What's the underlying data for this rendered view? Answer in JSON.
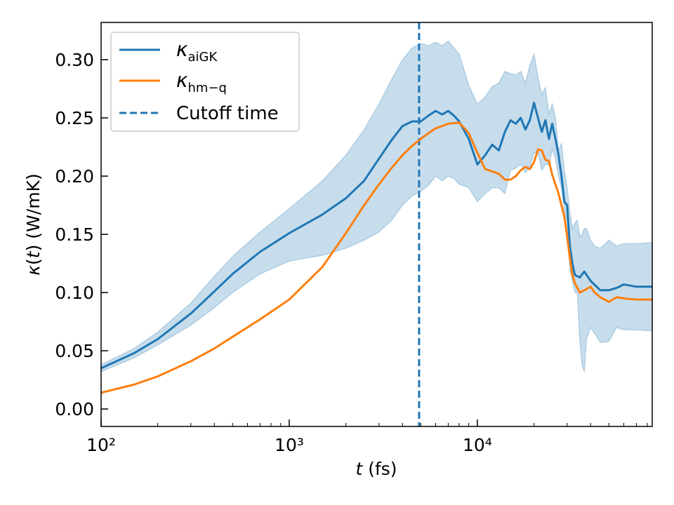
{
  "chart_data": {
    "type": "line",
    "xscale": "log",
    "xlabel": "t (fs)",
    "ylabel": "κ(t) (W/mK)",
    "xlim": [
      100,
      85000
    ],
    "ylim": [
      -0.015,
      0.332
    ],
    "x_ticks": [
      {
        "value": 100,
        "label": "10²"
      },
      {
        "value": 1000,
        "label": "10³"
      },
      {
        "value": 10000,
        "label": "10⁴"
      }
    ],
    "y_ticks": [
      {
        "value": 0.0,
        "label": "0.00"
      },
      {
        "value": 0.05,
        "label": "0.05"
      },
      {
        "value": 0.1,
        "label": "0.10"
      },
      {
        "value": 0.15,
        "label": "0.15"
      },
      {
        "value": 0.2,
        "label": "0.20"
      },
      {
        "value": 0.25,
        "label": "0.25"
      },
      {
        "value": 0.3,
        "label": "0.30"
      }
    ],
    "grid": false,
    "legend_position": "top-left",
    "colors": {
      "aigk": "#1f77b4",
      "hmq": "#ff7f0e",
      "band": "#1f77b4",
      "cutoff": "#1f77b4"
    },
    "series": [
      {
        "name": "κaiGK",
        "x": [
          100,
          150,
          200,
          300,
          400,
          500,
          700,
          1000,
          1500,
          2000,
          2500,
          3000,
          3500,
          4000,
          4500,
          5000,
          5500,
          6000,
          6500,
          7000,
          7500,
          8000,
          9000,
          10000,
          11000,
          12000,
          13000,
          14000,
          15000,
          16000,
          17000,
          18000,
          19000,
          20000,
          21000,
          22000,
          23000,
          24000,
          25000,
          26000,
          27000,
          28000,
          29000,
          30000,
          31000,
          32000,
          33000,
          35000,
          37000,
          40000,
          45000,
          50000,
          55000,
          60000,
          70000,
          85000
        ],
        "y": [
          0.035,
          0.048,
          0.06,
          0.082,
          0.101,
          0.116,
          0.135,
          0.151,
          0.167,
          0.181,
          0.196,
          0.215,
          0.231,
          0.243,
          0.247,
          0.247,
          0.252,
          0.256,
          0.253,
          0.256,
          0.252,
          0.247,
          0.232,
          0.21,
          0.218,
          0.227,
          0.222,
          0.238,
          0.248,
          0.245,
          0.25,
          0.24,
          0.248,
          0.263,
          0.25,
          0.238,
          0.248,
          0.232,
          0.245,
          0.232,
          0.218,
          0.2,
          0.178,
          0.175,
          0.14,
          0.125,
          0.115,
          0.113,
          0.118,
          0.11,
          0.102,
          0.102,
          0.104,
          0.107,
          0.105,
          0.105
        ]
      },
      {
        "name": "κhm−q",
        "x": [
          100,
          150,
          200,
          300,
          400,
          500,
          700,
          1000,
          1500,
          2000,
          2500,
          3000,
          3500,
          4000,
          4500,
          5000,
          5500,
          6000,
          7000,
          8000,
          9000,
          10000,
          11000,
          12000,
          13000,
          14000,
          15000,
          16000,
          17000,
          18000,
          19000,
          20000,
          21000,
          22000,
          23000,
          24000,
          25000,
          27000,
          29000,
          30000,
          31000,
          32000,
          33000,
          35000,
          37000,
          40000,
          42000,
          45000,
          50000,
          55000,
          60000,
          70000,
          85000
        ],
        "y": [
          0.014,
          0.021,
          0.028,
          0.041,
          0.052,
          0.062,
          0.077,
          0.094,
          0.122,
          0.151,
          0.175,
          0.193,
          0.207,
          0.218,
          0.226,
          0.232,
          0.237,
          0.241,
          0.245,
          0.246,
          0.237,
          0.22,
          0.206,
          0.204,
          0.202,
          0.197,
          0.197,
          0.2,
          0.205,
          0.208,
          0.206,
          0.212,
          0.223,
          0.222,
          0.214,
          0.213,
          0.201,
          0.185,
          0.165,
          0.148,
          0.13,
          0.115,
          0.108,
          0.1,
          0.102,
          0.105,
          0.1,
          0.096,
          0.092,
          0.096,
          0.095,
          0.094,
          0.094
        ]
      }
    ],
    "band": {
      "x": [
        100,
        150,
        200,
        300,
        400,
        500,
        700,
        1000,
        1500,
        2000,
        2500,
        3000,
        3500,
        4000,
        4500,
        5000,
        5500,
        6000,
        6500,
        7000,
        7500,
        8000,
        9000,
        10000,
        11000,
        12000,
        13000,
        14000,
        15000,
        16000,
        17000,
        18000,
        19000,
        20000,
        21000,
        22000,
        23000,
        24000,
        25000,
        26000,
        27000,
        28000,
        29000,
        30000,
        31000,
        32000,
        33000,
        34000,
        35000,
        36000,
        37000,
        38000,
        40000,
        42000,
        45000,
        50000,
        55000,
        60000,
        70000,
        85000
      ],
      "upper": [
        0.038,
        0.052,
        0.066,
        0.091,
        0.114,
        0.131,
        0.152,
        0.172,
        0.196,
        0.218,
        0.24,
        0.262,
        0.283,
        0.3,
        0.31,
        0.314,
        0.312,
        0.315,
        0.312,
        0.316,
        0.31,
        0.305,
        0.278,
        0.262,
        0.268,
        0.277,
        0.28,
        0.29,
        0.288,
        0.287,
        0.29,
        0.28,
        0.295,
        0.305,
        0.285,
        0.27,
        0.276,
        0.253,
        0.262,
        0.25,
        0.222,
        0.228,
        0.205,
        0.19,
        0.17,
        0.155,
        0.16,
        0.162,
        0.148,
        0.15,
        0.155,
        0.155,
        0.145,
        0.14,
        0.138,
        0.145,
        0.14,
        0.142,
        0.142,
        0.143
      ],
      "lower": [
        0.032,
        0.044,
        0.055,
        0.072,
        0.087,
        0.1,
        0.116,
        0.127,
        0.132,
        0.138,
        0.145,
        0.152,
        0.162,
        0.175,
        0.183,
        0.187,
        0.192,
        0.2,
        0.196,
        0.2,
        0.198,
        0.193,
        0.19,
        0.178,
        0.185,
        0.19,
        0.19,
        0.185,
        0.205,
        0.207,
        0.21,
        0.203,
        0.208,
        0.22,
        0.22,
        0.205,
        0.21,
        0.21,
        0.223,
        0.215,
        0.2,
        0.19,
        0.17,
        0.16,
        0.12,
        0.11,
        0.1,
        0.1,
        0.06,
        0.038,
        0.032,
        0.06,
        0.07,
        0.065,
        0.057,
        0.058,
        0.07,
        0.068,
        0.068,
        0.067
      ]
    },
    "cutoff": {
      "name": "Cutoff time",
      "x": 4900
    }
  }
}
